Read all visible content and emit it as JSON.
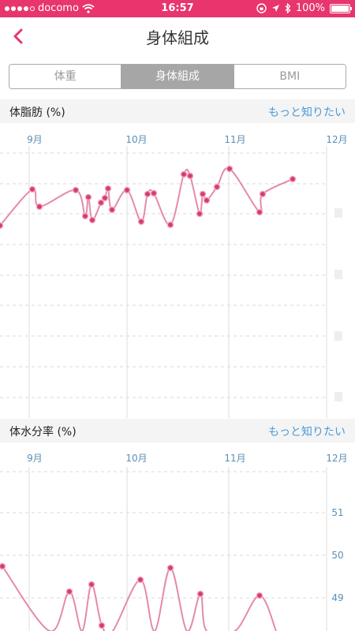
{
  "status": {
    "carrier": "docomo",
    "time": "16:57",
    "battery": "100%"
  },
  "nav": {
    "title": "身体組成"
  },
  "tabs": [
    {
      "label": "体重",
      "active": false
    },
    {
      "label": "身体組成",
      "active": true
    },
    {
      "label": "BMI",
      "active": false
    }
  ],
  "colors": {
    "accent": "#e8356d",
    "line": "#e58aab",
    "point": "#d43c72",
    "link": "#4a9ad8"
  },
  "sections": [
    {
      "title": "体脂肪 (%)",
      "link": "もっと知りたい"
    },
    {
      "title": "体水分率 (%)",
      "link": "もっと知りたい"
    }
  ],
  "chart_data": [
    {
      "type": "line",
      "title": "体脂肪 (%)",
      "x_labels": [
        "9月",
        "10月",
        "11月",
        "12月"
      ],
      "y_ticks": [],
      "points": [
        [
          0,
          286
        ],
        [
          41,
          240
        ],
        [
          50,
          262
        ],
        [
          96,
          241
        ],
        [
          108,
          274
        ],
        [
          112,
          250
        ],
        [
          117,
          279
        ],
        [
          128,
          257
        ],
        [
          133,
          251
        ],
        [
          137,
          239
        ],
        [
          142,
          266
        ],
        [
          161,
          241
        ],
        [
          179,
          281
        ],
        [
          187,
          246
        ],
        [
          195,
          245
        ],
        [
          216,
          285
        ],
        [
          233,
          221
        ],
        [
          241,
          223
        ],
        [
          253,
          271
        ],
        [
          257,
          246
        ],
        [
          262,
          254
        ],
        [
          275,
          237
        ],
        [
          291,
          214
        ],
        [
          329,
          269
        ],
        [
          333,
          246
        ],
        [
          371,
          227
        ]
      ]
    },
    {
      "type": "line",
      "title": "体水分率 (%)",
      "x_labels": [
        "9月",
        "10月",
        "11月",
        "12月"
      ],
      "y_ticks": [
        "51",
        "50",
        "49"
      ],
      "points": [
        [
          3,
          718
        ],
        [
          63,
          800
        ],
        [
          88,
          750
        ],
        [
          104,
          800
        ],
        [
          116,
          741
        ],
        [
          129,
          793
        ],
        [
          143,
          800
        ],
        [
          178,
          735
        ],
        [
          196,
          800
        ],
        [
          216,
          720
        ],
        [
          237,
          800
        ],
        [
          254,
          753
        ],
        [
          262,
          800
        ],
        [
          298,
          800
        ],
        [
          329,
          755
        ],
        [
          350,
          800
        ]
      ]
    }
  ]
}
